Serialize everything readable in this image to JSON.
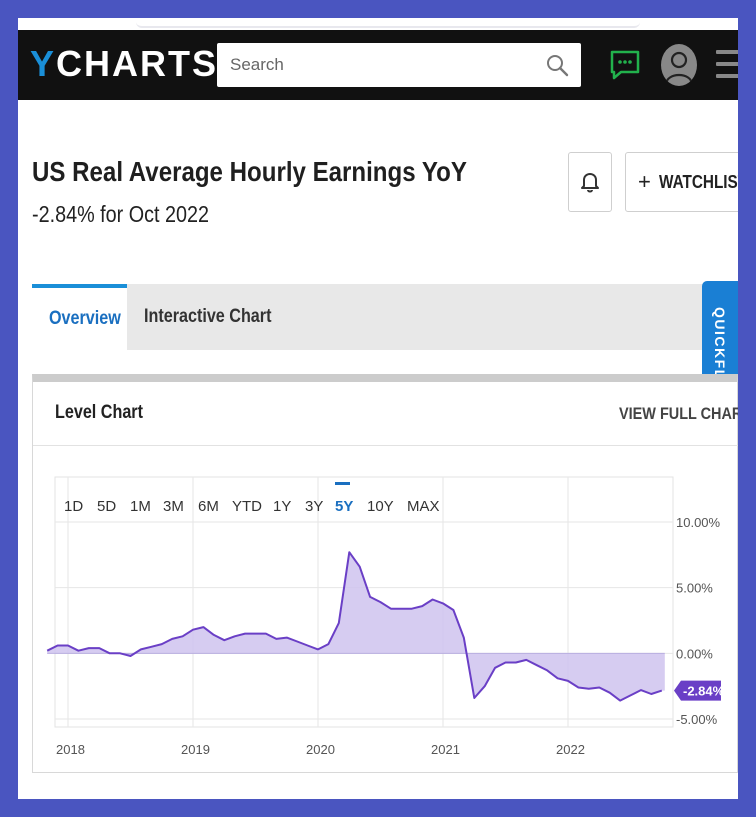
{
  "header": {
    "logo_y": "Y",
    "logo_rest": "CHARTS",
    "search_placeholder": "Search"
  },
  "page": {
    "title": "US Real Average Hourly Earnings YoY",
    "subtitle": "-2.84% for Oct 2022",
    "watchlist_label": "WATCHLIST",
    "watchlist_plus": "+"
  },
  "tabs": [
    {
      "label": "Overview",
      "active": true
    },
    {
      "label": "Interactive Chart",
      "active": false
    }
  ],
  "quickflows_label": "QUICKFLOWS",
  "panel": {
    "title": "Level Chart",
    "view_full_label": "VIEW FULL CHART"
  },
  "chart_data": {
    "type": "area",
    "ranges": [
      "1D",
      "5D",
      "1M",
      "3M",
      "6M",
      "YTD",
      "1Y",
      "3Y",
      "5Y",
      "10Y",
      "MAX"
    ],
    "active_range": "5Y",
    "x_ticks": [
      "2018",
      "2019",
      "2020",
      "2021",
      "2022"
    ],
    "y_ticks": [
      10,
      5,
      0,
      -5
    ],
    "y_tick_labels": [
      "10.00%",
      "5.00%",
      "0.00%",
      "-5.00%"
    ],
    "ylim": [
      -5,
      10
    ],
    "last_value_label": "-2.84%",
    "colors": {
      "line": "#6a3fc6",
      "fill": "#cfc3ee",
      "label_bg": "#6a3fc6"
    },
    "series": [
      {
        "x": [
          "2017-11",
          "2017-12",
          "2018-01",
          "2018-02",
          "2018-03",
          "2018-04",
          "2018-05",
          "2018-06",
          "2018-07",
          "2018-08",
          "2018-09",
          "2018-10",
          "2018-11",
          "2018-12",
          "2019-01",
          "2019-02",
          "2019-03",
          "2019-04",
          "2019-05",
          "2019-06",
          "2019-07",
          "2019-08",
          "2019-09",
          "2019-10",
          "2019-11",
          "2019-12",
          "2020-01",
          "2020-02",
          "2020-03",
          "2020-04",
          "2020-05",
          "2020-06",
          "2020-07",
          "2020-08",
          "2020-09",
          "2020-10",
          "2020-11",
          "2020-12",
          "2021-01",
          "2021-02",
          "2021-03",
          "2021-04",
          "2021-05",
          "2021-06",
          "2021-07",
          "2021-08",
          "2021-09",
          "2021-10",
          "2021-11",
          "2021-12",
          "2022-01",
          "2022-02",
          "2022-03",
          "2022-04",
          "2022-05",
          "2022-06",
          "2022-07",
          "2022-08",
          "2022-09",
          "2022-10"
        ],
        "values": [
          0.2,
          0.6,
          0.6,
          0.2,
          0.4,
          0.4,
          0.0,
          0.0,
          -0.2,
          0.3,
          0.5,
          0.7,
          1.1,
          1.3,
          1.8,
          2.0,
          1.4,
          1.0,
          1.3,
          1.5,
          1.5,
          1.5,
          1.1,
          1.2,
          0.9,
          0.6,
          0.3,
          0.7,
          2.3,
          7.7,
          6.6,
          4.3,
          3.9,
          3.4,
          3.4,
          3.4,
          3.6,
          4.1,
          3.8,
          3.3,
          1.2,
          -3.4,
          -2.5,
          -1.1,
          -0.7,
          -0.7,
          -0.5,
          -0.9,
          -1.3,
          -1.9,
          -2.1,
          -2.6,
          -2.7,
          -2.6,
          -3.0,
          -3.6,
          -3.2,
          -2.8,
          -3.1,
          -2.84
        ]
      }
    ]
  }
}
